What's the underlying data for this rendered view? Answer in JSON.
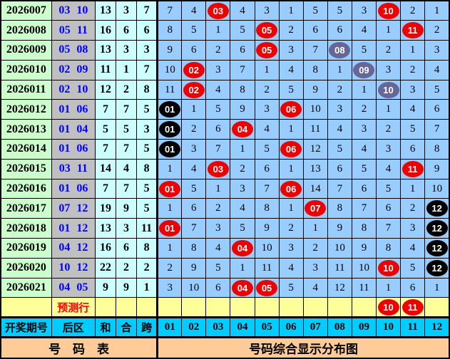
{
  "colors": {
    "period_bg": "#ccffcc",
    "houqu_bg": "#c0c0c0",
    "val_bg": "#ccffff",
    "grid_bg": "#99ccff",
    "prediction_bg": "#ffff99",
    "header_bg": "#00ccff",
    "footer_bg": "#ffcc99",
    "houqu_text": "#0000ff",
    "prediction_text": "#ff0000",
    "ball_red": "#ee0000",
    "ball_gray": "#666699",
    "ball_black": "#000000"
  },
  "chart_data": {
    "type": "table",
    "title": "号码综合显示分布图",
    "footer_left": "号　码　表",
    "left_columns": [
      "开奖期号",
      "后区",
      "和",
      "合",
      "跨"
    ],
    "number_columns": [
      "01",
      "02",
      "03",
      "04",
      "05",
      "06",
      "07",
      "08",
      "09",
      "10",
      "11",
      "12"
    ],
    "prediction_row": {
      "label": "预测行",
      "cells": [
        "",
        "",
        "",
        "",
        "",
        "",
        "",
        "",
        "",
        {
          "t": "10",
          "c": "red"
        },
        {
          "t": "11",
          "c": "red"
        },
        ""
      ]
    },
    "rows": [
      {
        "period": "2026007",
        "houqu": [
          "03",
          "10"
        ],
        "sum": "13",
        "tail": "3",
        "span": "7",
        "cells": [
          "7",
          "4",
          {
            "t": "03",
            "c": "red"
          },
          "4",
          "3",
          "1",
          "5",
          "5",
          "3",
          {
            "t": "10",
            "c": "red"
          },
          "2",
          "1"
        ]
      },
      {
        "period": "2026008",
        "houqu": [
          "05",
          "11"
        ],
        "sum": "16",
        "tail": "6",
        "span": "6",
        "cells": [
          "8",
          "5",
          "1",
          "5",
          {
            "t": "05",
            "c": "red"
          },
          "2",
          "6",
          "6",
          "4",
          "1",
          {
            "t": "11",
            "c": "red"
          },
          "2"
        ]
      },
      {
        "period": "2026009",
        "houqu": [
          "05",
          "08"
        ],
        "sum": "13",
        "tail": "3",
        "span": "3",
        "cells": [
          "9",
          "6",
          "2",
          "6",
          {
            "t": "05",
            "c": "red"
          },
          "3",
          "7",
          {
            "t": "08",
            "c": "gray"
          },
          "5",
          "2",
          "1",
          "3"
        ]
      },
      {
        "period": "2026010",
        "houqu": [
          "02",
          "09"
        ],
        "sum": "11",
        "tail": "1",
        "span": "7",
        "cells": [
          "10",
          {
            "t": "02",
            "c": "red"
          },
          "3",
          "7",
          "1",
          "4",
          "8",
          "1",
          {
            "t": "09",
            "c": "gray"
          },
          "3",
          "2",
          "4"
        ]
      },
      {
        "period": "2026011",
        "houqu": [
          "02",
          "10"
        ],
        "sum": "12",
        "tail": "2",
        "span": "8",
        "cells": [
          "11",
          {
            "t": "02",
            "c": "red"
          },
          "4",
          "8",
          "2",
          "5",
          "9",
          "2",
          "1",
          {
            "t": "10",
            "c": "gray"
          },
          "3",
          "5"
        ]
      },
      {
        "period": "2026012",
        "houqu": [
          "01",
          "06"
        ],
        "sum": "7",
        "tail": "7",
        "span": "5",
        "cells": [
          {
            "t": "01",
            "c": "black"
          },
          "1",
          "5",
          "9",
          "3",
          {
            "t": "06",
            "c": "red"
          },
          "10",
          "3",
          "2",
          "1",
          "4",
          "6"
        ]
      },
      {
        "period": "2026013",
        "houqu": [
          "01",
          "04"
        ],
        "sum": "5",
        "tail": "5",
        "span": "3",
        "cells": [
          {
            "t": "01",
            "c": "black"
          },
          "2",
          "6",
          {
            "t": "04",
            "c": "red"
          },
          "4",
          "1",
          "11",
          "4",
          "3",
          "2",
          "5",
          "7"
        ]
      },
      {
        "period": "2026014",
        "houqu": [
          "01",
          "06"
        ],
        "sum": "7",
        "tail": "7",
        "span": "5",
        "cells": [
          {
            "t": "01",
            "c": "black"
          },
          "3",
          "7",
          "1",
          "5",
          {
            "t": "06",
            "c": "red"
          },
          "12",
          "5",
          "4",
          "3",
          "6",
          "8"
        ]
      },
      {
        "period": "2026015",
        "houqu": [
          "03",
          "11"
        ],
        "sum": "14",
        "tail": "4",
        "span": "8",
        "cells": [
          "1",
          "4",
          {
            "t": "03",
            "c": "red"
          },
          "2",
          "6",
          "1",
          "13",
          "6",
          "5",
          "4",
          {
            "t": "11",
            "c": "red"
          },
          "9"
        ]
      },
      {
        "period": "2026016",
        "houqu": [
          "01",
          "06"
        ],
        "sum": "7",
        "tail": "7",
        "span": "5",
        "cells": [
          {
            "t": "01",
            "c": "red"
          },
          "5",
          "1",
          "3",
          "7",
          {
            "t": "06",
            "c": "red"
          },
          "14",
          "7",
          "6",
          "5",
          "1",
          "10"
        ]
      },
      {
        "period": "2026017",
        "houqu": [
          "07",
          "12"
        ],
        "sum": "19",
        "tail": "9",
        "span": "5",
        "cells": [
          "1",
          "6",
          "2",
          "4",
          "8",
          "1",
          {
            "t": "07",
            "c": "red"
          },
          "8",
          "7",
          "6",
          "2",
          {
            "t": "12",
            "c": "black"
          }
        ]
      },
      {
        "period": "2026018",
        "houqu": [
          "01",
          "12"
        ],
        "sum": "13",
        "tail": "3",
        "span": "11",
        "cells": [
          {
            "t": "01",
            "c": "red"
          },
          "7",
          "3",
          "5",
          "9",
          "2",
          "1",
          "9",
          "8",
          "7",
          "3",
          {
            "t": "12",
            "c": "black"
          }
        ]
      },
      {
        "period": "2026019",
        "houqu": [
          "04",
          "12"
        ],
        "sum": "16",
        "tail": "6",
        "span": "8",
        "cells": [
          "1",
          "8",
          "4",
          {
            "t": "04",
            "c": "red"
          },
          "10",
          "3",
          "2",
          "10",
          "9",
          "8",
          "4",
          {
            "t": "12",
            "c": "black"
          }
        ]
      },
      {
        "period": "2026020",
        "houqu": [
          "10",
          "12"
        ],
        "sum": "22",
        "tail": "2",
        "span": "2",
        "cells": [
          "2",
          "9",
          "5",
          "1",
          "11",
          "4",
          "3",
          "11",
          "10",
          {
            "t": "10",
            "c": "red"
          },
          "5",
          {
            "t": "12",
            "c": "black"
          }
        ]
      },
      {
        "period": "2026021",
        "houqu": [
          "04",
          "05"
        ],
        "sum": "9",
        "tail": "9",
        "span": "1",
        "cells": [
          "3",
          "10",
          "6",
          {
            "t": "04",
            "c": "red"
          },
          {
            "t": "05",
            "c": "red"
          },
          "5",
          "4",
          "12",
          "11",
          "1",
          "6",
          "1"
        ]
      }
    ]
  }
}
